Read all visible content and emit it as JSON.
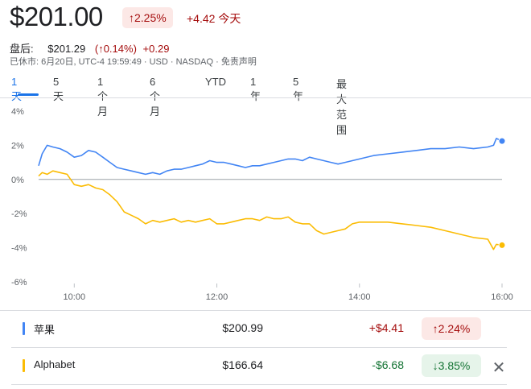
{
  "header": {
    "price": "$201.00",
    "change_badge": "↑2.25%",
    "change_abs": "+4.42 今天"
  },
  "after_hours": {
    "label": "盘后:",
    "price": "$201.29",
    "pct": "(↑0.14%)",
    "abs": "+0.29"
  },
  "meta": "已休市: 6月20日, UTC-4 19:59:49 · USD · NASDAQ · 免责声明",
  "tabs": [
    "1 天",
    "5 天",
    "1 个月",
    "6 个月",
    "YTD",
    "1 年",
    "5 年",
    "最大范围"
  ],
  "active_tab": "1 天",
  "colors": {
    "apple": "#4285f4",
    "alphabet": "#fbbc04",
    "up": "#a50e0e",
    "down": "#137333",
    "up_bg": "#fce8e6",
    "down_bg": "#e6f4ea"
  },
  "chart_data": {
    "type": "line",
    "ylim": [
      -6,
      4
    ],
    "yticks": [
      "4%",
      "2%",
      "0%",
      "-2%",
      "-4%",
      "-6%"
    ],
    "ytick_values": [
      4,
      2,
      0,
      -2,
      -4,
      -6
    ],
    "xlim": [
      9.5,
      16.0
    ],
    "xticks": [
      "10:00",
      "12:00",
      "14:00",
      "16:00"
    ],
    "xtick_values": [
      10,
      12,
      14,
      16
    ],
    "series": [
      {
        "name": "苹果",
        "x": [
          9.5,
          9.55,
          9.62,
          9.7,
          9.8,
          9.9,
          10.0,
          10.1,
          10.2,
          10.3,
          10.4,
          10.5,
          10.6,
          10.7,
          10.8,
          10.9,
          11.0,
          11.1,
          11.2,
          11.3,
          11.4,
          11.5,
          11.6,
          11.7,
          11.8,
          11.9,
          12.0,
          12.1,
          12.2,
          12.3,
          12.4,
          12.5,
          12.6,
          12.7,
          12.8,
          12.9,
          13.0,
          13.1,
          13.2,
          13.3,
          13.4,
          13.5,
          13.6,
          13.7,
          13.8,
          13.9,
          14.0,
          14.2,
          14.4,
          14.6,
          14.8,
          15.0,
          15.2,
          15.4,
          15.6,
          15.8,
          15.88,
          15.92,
          16.0
        ],
        "y": [
          0.8,
          1.5,
          2.0,
          1.9,
          1.8,
          1.6,
          1.3,
          1.4,
          1.7,
          1.6,
          1.3,
          1.0,
          0.7,
          0.6,
          0.5,
          0.4,
          0.3,
          0.4,
          0.3,
          0.5,
          0.6,
          0.6,
          0.7,
          0.8,
          0.9,
          1.1,
          1.0,
          1.0,
          0.9,
          0.8,
          0.7,
          0.8,
          0.8,
          0.9,
          1.0,
          1.1,
          1.2,
          1.2,
          1.1,
          1.3,
          1.2,
          1.1,
          1.0,
          0.9,
          1.0,
          1.1,
          1.2,
          1.4,
          1.5,
          1.6,
          1.7,
          1.8,
          1.8,
          1.9,
          1.8,
          1.9,
          2.0,
          2.4,
          2.25
        ]
      },
      {
        "name": "Alphabet",
        "x": [
          9.5,
          9.55,
          9.62,
          9.7,
          9.8,
          9.9,
          10.0,
          10.1,
          10.2,
          10.3,
          10.4,
          10.5,
          10.6,
          10.7,
          10.8,
          10.9,
          11.0,
          11.1,
          11.2,
          11.3,
          11.4,
          11.5,
          11.6,
          11.7,
          11.8,
          11.9,
          12.0,
          12.1,
          12.2,
          12.3,
          12.4,
          12.5,
          12.6,
          12.7,
          12.8,
          12.9,
          13.0,
          13.1,
          13.2,
          13.3,
          13.4,
          13.5,
          13.6,
          13.7,
          13.8,
          13.9,
          14.0,
          14.2,
          14.4,
          14.6,
          14.8,
          15.0,
          15.2,
          15.4,
          15.6,
          15.8,
          15.88,
          15.92,
          16.0
        ],
        "y": [
          0.2,
          0.4,
          0.3,
          0.5,
          0.4,
          0.3,
          -0.3,
          -0.4,
          -0.3,
          -0.5,
          -0.6,
          -0.9,
          -1.3,
          -1.9,
          -2.1,
          -2.3,
          -2.6,
          -2.4,
          -2.5,
          -2.4,
          -2.3,
          -2.5,
          -2.4,
          -2.5,
          -2.4,
          -2.3,
          -2.6,
          -2.6,
          -2.5,
          -2.4,
          -2.3,
          -2.3,
          -2.4,
          -2.2,
          -2.3,
          -2.3,
          -2.2,
          -2.5,
          -2.6,
          -2.6,
          -3.0,
          -3.2,
          -3.1,
          -3.0,
          -2.9,
          -2.6,
          -2.5,
          -2.5,
          -2.5,
          -2.6,
          -2.7,
          -2.8,
          -3.0,
          -3.2,
          -3.4,
          -3.5,
          -4.1,
          -3.8,
          -3.85
        ]
      }
    ]
  },
  "compare": [
    {
      "name": "苹果",
      "price": "$200.99",
      "change": "+$4.41",
      "pct": "↑2.24%",
      "dir": "up"
    },
    {
      "name": "Alphabet",
      "price": "$166.64",
      "change": "-$6.68",
      "pct": "↓3.85%",
      "dir": "down"
    }
  ],
  "close_icon": "✕"
}
